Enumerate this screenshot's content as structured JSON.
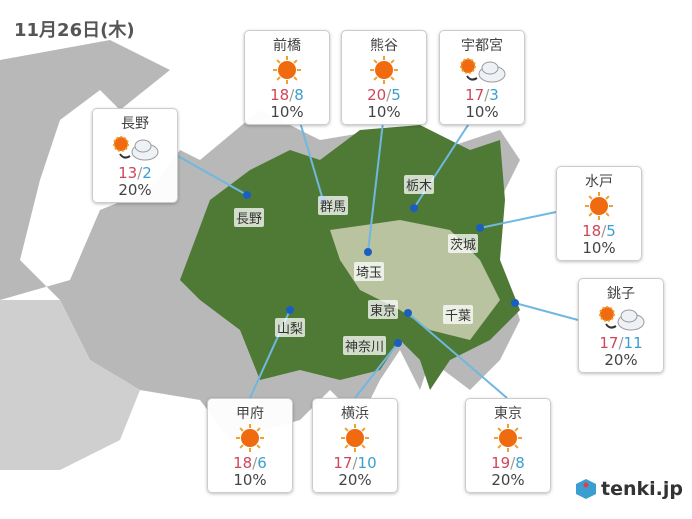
{
  "date": "11月26日(木)",
  "colors": {
    "high": "#d0465a",
    "low": "#3a9fd0",
    "connector": "#6fb8e0",
    "dot": "#1a5fc0"
  },
  "cities": [
    {
      "name": "長野",
      "icon": "sunny-then-cloudy",
      "high": "13",
      "low": "2",
      "precip": "20%"
    },
    {
      "name": "前橋",
      "icon": "sunny",
      "high": "18",
      "low": "8",
      "precip": "10%"
    },
    {
      "name": "熊谷",
      "icon": "sunny",
      "high": "20",
      "low": "5",
      "precip": "10%"
    },
    {
      "name": "宇都宮",
      "icon": "sunny-then-cloudy",
      "high": "17",
      "low": "3",
      "precip": "10%"
    },
    {
      "name": "水戸",
      "icon": "sunny",
      "high": "18",
      "low": "5",
      "precip": "10%"
    },
    {
      "name": "銚子",
      "icon": "sunny-then-cloudy",
      "high": "17",
      "low": "11",
      "precip": "20%"
    },
    {
      "name": "甲府",
      "icon": "sunny",
      "high": "18",
      "low": "6",
      "precip": "10%"
    },
    {
      "name": "横浜",
      "icon": "sunny",
      "high": "17",
      "low": "10",
      "precip": "20%"
    },
    {
      "name": "東京",
      "icon": "sunny",
      "high": "19",
      "low": "8",
      "precip": "20%"
    }
  ],
  "prefectures": [
    "長野",
    "群馬",
    "栃木",
    "茨城",
    "埼玉",
    "東京",
    "千葉",
    "山梨",
    "神奈川"
  ],
  "logo": "tenki.jp"
}
